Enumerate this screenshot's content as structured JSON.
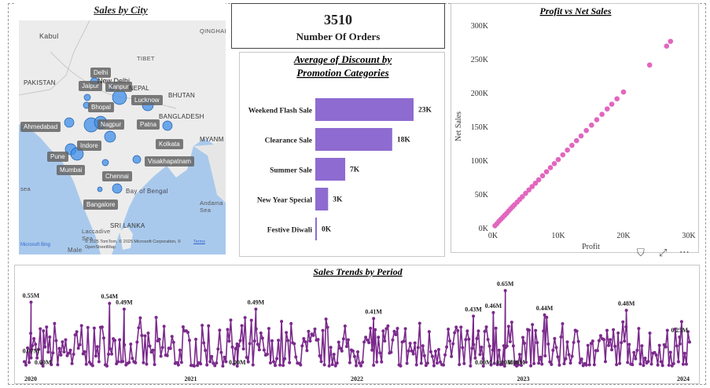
{
  "map": {
    "title": "Sales by City",
    "geo_labels": [
      "Kabul",
      "QINGHAI",
      "TIBET",
      "PAKISTAN",
      "BHUTAN",
      "BANGLADESH",
      "MYANM",
      "Andama Sea",
      "Bay of Bengal",
      "SRI LANKA",
      "Laccadive Sea",
      "Male",
      "sea"
    ],
    "attribution": "© 2025 TomTom, © 2025 Microsoft Corporation, © OpenStreetMap",
    "terms": "Terms",
    "brand": "Microsoft Bing",
    "cities": [
      "Delhi",
      "Jaipur",
      "New Delhi",
      "Kanpur",
      "NEPAL",
      "Lucknow",
      "Bhopal",
      "Ahmedabad",
      "Nagpur",
      "Patna",
      "Indore",
      "Kolkata",
      "Pune",
      "Mumbai",
      "Visakhapatnam",
      "Chennai",
      "Bangalore"
    ]
  },
  "kpi": {
    "value": "3510",
    "label": "Number Of Orders"
  },
  "colors": {
    "bar": "#8e6bd0",
    "scatter": "#e266be",
    "line": "#7b2a8c",
    "map_water": "#a9c9ec",
    "map_land": "#ececec",
    "bubble": "#3f8fe8"
  },
  "chart_data": [
    {
      "type": "bar",
      "title": "Average of Discount by Promotion Categories",
      "categories": [
        "Weekend Flash Sale",
        "Clearance Sale",
        "Summer Sale",
        "New Year Special",
        "Festive Diwali"
      ],
      "values": [
        23000,
        18000,
        7000,
        3000,
        0
      ],
      "data_labels": [
        "23K",
        "18K",
        "7K",
        "3K",
        "0K"
      ],
      "orientation": "horizontal",
      "xlim": [
        0,
        23000
      ]
    },
    {
      "type": "scatter",
      "title": "Profit vs Net Sales",
      "xlabel": "Profit",
      "ylabel": "Net Sales",
      "xlim": [
        0,
        30000
      ],
      "ylim": [
        0,
        300000
      ],
      "x_ticks": [
        "0K",
        "10K",
        "20K",
        "30K"
      ],
      "y_ticks": [
        "0K",
        "50K",
        "100K",
        "150K",
        "200K",
        "250K",
        "300K"
      ],
      "points": [
        [
          300,
          3000
        ],
        [
          600,
          6000
        ],
        [
          900,
          9500
        ],
        [
          1200,
          12500
        ],
        [
          1500,
          15500
        ],
        [
          1800,
          18500
        ],
        [
          2100,
          21500
        ],
        [
          2400,
          25000
        ],
        [
          2700,
          28000
        ],
        [
          3000,
          31000
        ],
        [
          3300,
          34000
        ],
        [
          3700,
          38000
        ],
        [
          4100,
          42000
        ],
        [
          4500,
          46000
        ],
        [
          5000,
          51000
        ],
        [
          5500,
          56000
        ],
        [
          6000,
          61000
        ],
        [
          6500,
          66000
        ],
        [
          7000,
          71000
        ],
        [
          7600,
          77000
        ],
        [
          8200,
          83000
        ],
        [
          8800,
          89000
        ],
        [
          9400,
          95000
        ],
        [
          10000,
          101000
        ],
        [
          10700,
          108000
        ],
        [
          11400,
          115000
        ],
        [
          12100,
          122000
        ],
        [
          12800,
          129000
        ],
        [
          13500,
          136000
        ],
        [
          14300,
          144000
        ],
        [
          15100,
          152000
        ],
        [
          15900,
          160000
        ],
        [
          16700,
          168000
        ],
        [
          17500,
          176000
        ],
        [
          18200,
          183000
        ],
        [
          19000,
          191000
        ],
        [
          20000,
          201000
        ],
        [
          24000,
          241000
        ],
        [
          26600,
          269000
        ],
        [
          27200,
          276000
        ]
      ]
    },
    {
      "type": "line",
      "title": "Sales Trends by Period",
      "x_ticks": [
        "2020",
        "2021",
        "2022",
        "2023",
        "2024"
      ],
      "ylim": [
        0,
        650000
      ],
      "annotations": [
        {
          "t": 0.01,
          "label": "0.55M",
          "value": 550000
        },
        {
          "t": 0.028,
          "label": "0.00M",
          "value": 0
        },
        {
          "t": 0.01,
          "label": "0.07M",
          "value": 70000
        },
        {
          "t": 0.128,
          "label": "0.54M",
          "value": 540000
        },
        {
          "t": 0.15,
          "label": "0.49M",
          "value": 490000
        },
        {
          "t": 0.348,
          "label": "0.49M",
          "value": 490000
        },
        {
          "t": 0.32,
          "label": "0.00M",
          "value": 0
        },
        {
          "t": 0.525,
          "label": "0.41M",
          "value": 410000
        },
        {
          "t": 0.675,
          "label": "0.43M",
          "value": 430000
        },
        {
          "t": 0.705,
          "label": "0.46M",
          "value": 460000
        },
        {
          "t": 0.723,
          "label": "0.65M",
          "value": 650000
        },
        {
          "t": 0.69,
          "label": "0.00M",
          "value": 0
        },
        {
          "t": 0.74,
          "label": "0.00M",
          "value": 0
        },
        {
          "t": 0.722,
          "label": "0.00M",
          "value": 0
        },
        {
          "t": 0.782,
          "label": "0.44M",
          "value": 440000
        },
        {
          "t": 0.905,
          "label": "0.48M",
          "value": 480000
        },
        {
          "t": 0.985,
          "label": "0.25M",
          "value": 250000
        }
      ]
    }
  ]
}
